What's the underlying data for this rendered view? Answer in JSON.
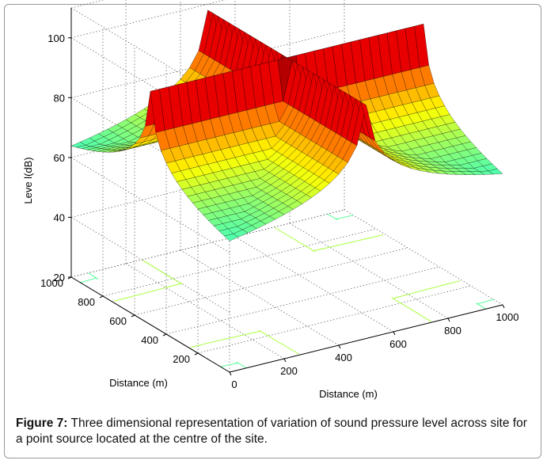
{
  "caption": {
    "label": "Figure 7:",
    "text": "Three dimensional representation of variation of sound pressure level across site for a point source located at the centre of the site."
  },
  "chart_data": {
    "type": "surface",
    "zlabel": "Leve l(dB)",
    "xlabel": "Distance (m)",
    "ylabel": "Distance (m)",
    "x_ticks": [
      0,
      200,
      400,
      600,
      800,
      1000
    ],
    "y_ticks": [
      200,
      400,
      600,
      800,
      1000
    ],
    "z_ticks": [
      20,
      40,
      60,
      80,
      100
    ],
    "xlim": [
      0,
      1000
    ],
    "ylim": [
      0,
      1000
    ],
    "zlim": [
      20,
      110
    ],
    "source": {
      "x": 500,
      "y": 500,
      "peak_db": 98
    },
    "edge_level_db": 36,
    "grid": true,
    "colormap": "jet",
    "contour_on_floor": true
  }
}
